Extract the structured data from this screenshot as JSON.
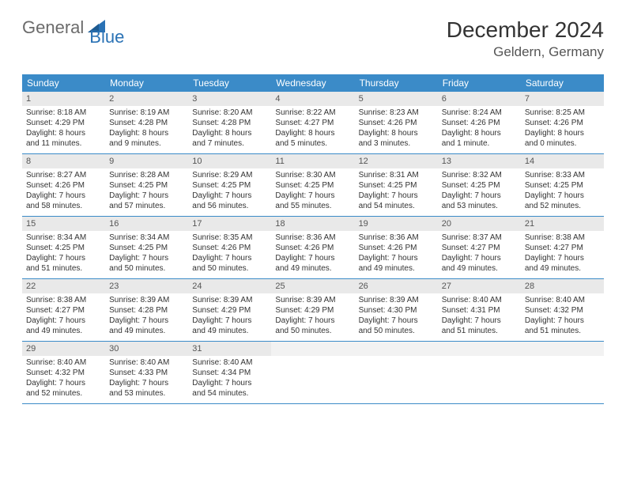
{
  "logo": {
    "text1": "General",
    "text2": "Blue"
  },
  "title": "December 2024",
  "location": "Geldern, Germany",
  "colors": {
    "header_bg": "#3b8bc8",
    "header_text": "#ffffff",
    "daynum_bg": "#e9e9e9",
    "daynum_bg_empty": "#f2f2f2",
    "row_border": "#3b8bc8",
    "logo_gray": "#6b6b6b",
    "logo_blue": "#2a72b5"
  },
  "typography": {
    "title_fontsize": 28,
    "location_fontsize": 17,
    "weekday_fontsize": 12,
    "daynum_fontsize": 11,
    "body_fontsize": 10
  },
  "weekdays": [
    "Sunday",
    "Monday",
    "Tuesday",
    "Wednesday",
    "Thursday",
    "Friday",
    "Saturday"
  ],
  "weeks": [
    [
      {
        "num": "1",
        "sunrise": "Sunrise: 8:18 AM",
        "sunset": "Sunset: 4:29 PM",
        "day1": "Daylight: 8 hours",
        "day2": "and 11 minutes."
      },
      {
        "num": "2",
        "sunrise": "Sunrise: 8:19 AM",
        "sunset": "Sunset: 4:28 PM",
        "day1": "Daylight: 8 hours",
        "day2": "and 9 minutes."
      },
      {
        "num": "3",
        "sunrise": "Sunrise: 8:20 AM",
        "sunset": "Sunset: 4:28 PM",
        "day1": "Daylight: 8 hours",
        "day2": "and 7 minutes."
      },
      {
        "num": "4",
        "sunrise": "Sunrise: 8:22 AM",
        "sunset": "Sunset: 4:27 PM",
        "day1": "Daylight: 8 hours",
        "day2": "and 5 minutes."
      },
      {
        "num": "5",
        "sunrise": "Sunrise: 8:23 AM",
        "sunset": "Sunset: 4:26 PM",
        "day1": "Daylight: 8 hours",
        "day2": "and 3 minutes."
      },
      {
        "num": "6",
        "sunrise": "Sunrise: 8:24 AM",
        "sunset": "Sunset: 4:26 PM",
        "day1": "Daylight: 8 hours",
        "day2": "and 1 minute."
      },
      {
        "num": "7",
        "sunrise": "Sunrise: 8:25 AM",
        "sunset": "Sunset: 4:26 PM",
        "day1": "Daylight: 8 hours",
        "day2": "and 0 minutes."
      }
    ],
    [
      {
        "num": "8",
        "sunrise": "Sunrise: 8:27 AM",
        "sunset": "Sunset: 4:26 PM",
        "day1": "Daylight: 7 hours",
        "day2": "and 58 minutes."
      },
      {
        "num": "9",
        "sunrise": "Sunrise: 8:28 AM",
        "sunset": "Sunset: 4:25 PM",
        "day1": "Daylight: 7 hours",
        "day2": "and 57 minutes."
      },
      {
        "num": "10",
        "sunrise": "Sunrise: 8:29 AM",
        "sunset": "Sunset: 4:25 PM",
        "day1": "Daylight: 7 hours",
        "day2": "and 56 minutes."
      },
      {
        "num": "11",
        "sunrise": "Sunrise: 8:30 AM",
        "sunset": "Sunset: 4:25 PM",
        "day1": "Daylight: 7 hours",
        "day2": "and 55 minutes."
      },
      {
        "num": "12",
        "sunrise": "Sunrise: 8:31 AM",
        "sunset": "Sunset: 4:25 PM",
        "day1": "Daylight: 7 hours",
        "day2": "and 54 minutes."
      },
      {
        "num": "13",
        "sunrise": "Sunrise: 8:32 AM",
        "sunset": "Sunset: 4:25 PM",
        "day1": "Daylight: 7 hours",
        "day2": "and 53 minutes."
      },
      {
        "num": "14",
        "sunrise": "Sunrise: 8:33 AM",
        "sunset": "Sunset: 4:25 PM",
        "day1": "Daylight: 7 hours",
        "day2": "and 52 minutes."
      }
    ],
    [
      {
        "num": "15",
        "sunrise": "Sunrise: 8:34 AM",
        "sunset": "Sunset: 4:25 PM",
        "day1": "Daylight: 7 hours",
        "day2": "and 51 minutes."
      },
      {
        "num": "16",
        "sunrise": "Sunrise: 8:34 AM",
        "sunset": "Sunset: 4:25 PM",
        "day1": "Daylight: 7 hours",
        "day2": "and 50 minutes."
      },
      {
        "num": "17",
        "sunrise": "Sunrise: 8:35 AM",
        "sunset": "Sunset: 4:26 PM",
        "day1": "Daylight: 7 hours",
        "day2": "and 50 minutes."
      },
      {
        "num": "18",
        "sunrise": "Sunrise: 8:36 AM",
        "sunset": "Sunset: 4:26 PM",
        "day1": "Daylight: 7 hours",
        "day2": "and 49 minutes."
      },
      {
        "num": "19",
        "sunrise": "Sunrise: 8:36 AM",
        "sunset": "Sunset: 4:26 PM",
        "day1": "Daylight: 7 hours",
        "day2": "and 49 minutes."
      },
      {
        "num": "20",
        "sunrise": "Sunrise: 8:37 AM",
        "sunset": "Sunset: 4:27 PM",
        "day1": "Daylight: 7 hours",
        "day2": "and 49 minutes."
      },
      {
        "num": "21",
        "sunrise": "Sunrise: 8:38 AM",
        "sunset": "Sunset: 4:27 PM",
        "day1": "Daylight: 7 hours",
        "day2": "and 49 minutes."
      }
    ],
    [
      {
        "num": "22",
        "sunrise": "Sunrise: 8:38 AM",
        "sunset": "Sunset: 4:27 PM",
        "day1": "Daylight: 7 hours",
        "day2": "and 49 minutes."
      },
      {
        "num": "23",
        "sunrise": "Sunrise: 8:39 AM",
        "sunset": "Sunset: 4:28 PM",
        "day1": "Daylight: 7 hours",
        "day2": "and 49 minutes."
      },
      {
        "num": "24",
        "sunrise": "Sunrise: 8:39 AM",
        "sunset": "Sunset: 4:29 PM",
        "day1": "Daylight: 7 hours",
        "day2": "and 49 minutes."
      },
      {
        "num": "25",
        "sunrise": "Sunrise: 8:39 AM",
        "sunset": "Sunset: 4:29 PM",
        "day1": "Daylight: 7 hours",
        "day2": "and 50 minutes."
      },
      {
        "num": "26",
        "sunrise": "Sunrise: 8:39 AM",
        "sunset": "Sunset: 4:30 PM",
        "day1": "Daylight: 7 hours",
        "day2": "and 50 minutes."
      },
      {
        "num": "27",
        "sunrise": "Sunrise: 8:40 AM",
        "sunset": "Sunset: 4:31 PM",
        "day1": "Daylight: 7 hours",
        "day2": "and 51 minutes."
      },
      {
        "num": "28",
        "sunrise": "Sunrise: 8:40 AM",
        "sunset": "Sunset: 4:32 PM",
        "day1": "Daylight: 7 hours",
        "day2": "and 51 minutes."
      }
    ],
    [
      {
        "num": "29",
        "sunrise": "Sunrise: 8:40 AM",
        "sunset": "Sunset: 4:32 PM",
        "day1": "Daylight: 7 hours",
        "day2": "and 52 minutes."
      },
      {
        "num": "30",
        "sunrise": "Sunrise: 8:40 AM",
        "sunset": "Sunset: 4:33 PM",
        "day1": "Daylight: 7 hours",
        "day2": "and 53 minutes."
      },
      {
        "num": "31",
        "sunrise": "Sunrise: 8:40 AM",
        "sunset": "Sunset: 4:34 PM",
        "day1": "Daylight: 7 hours",
        "day2": "and 54 minutes."
      },
      {
        "empty": true
      },
      {
        "empty": true
      },
      {
        "empty": true
      },
      {
        "empty": true
      }
    ]
  ]
}
